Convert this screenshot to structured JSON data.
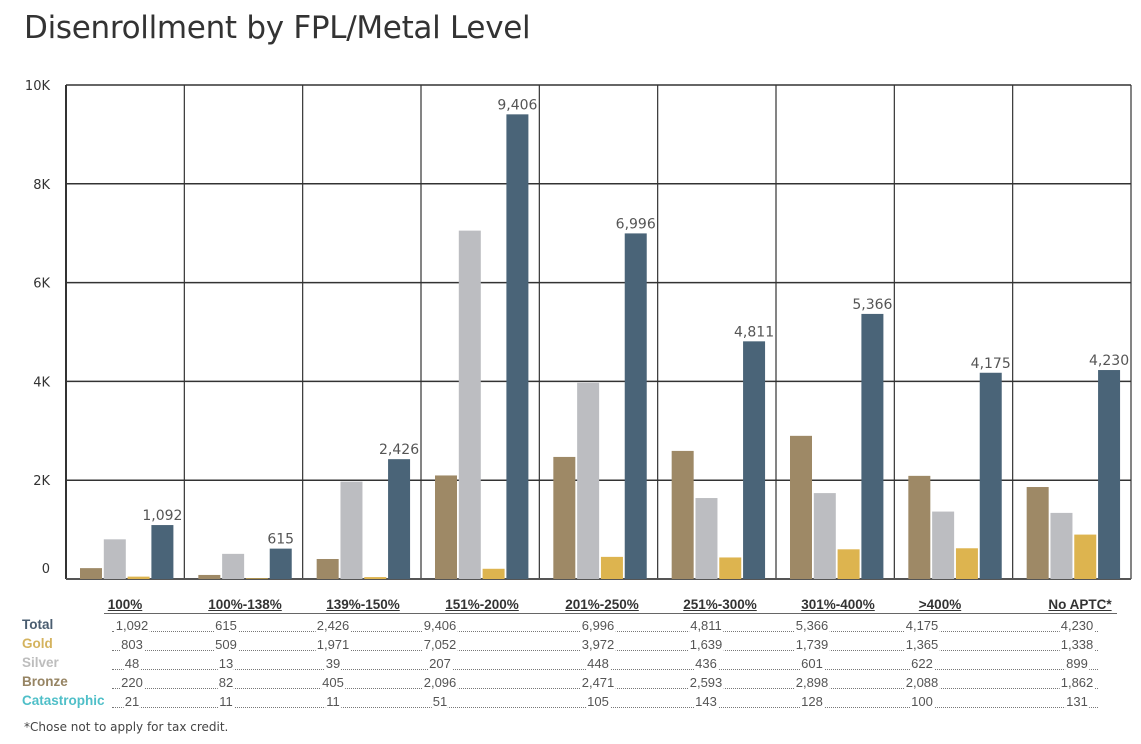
{
  "title": "Disenrollment by FPL/Metal Level",
  "chart_data": {
    "type": "bar",
    "title": "Disenrollment by FPL/Metal Level",
    "categories": [
      "100%",
      "100%-138%",
      "139%-150%",
      "151%-200%",
      "201%-250%",
      "251%-300%",
      "301%-400%",
      ">400%",
      "No APTC*"
    ],
    "ylim": [
      0,
      10000
    ],
    "yticks": [
      "0",
      "2K",
      "4K",
      "6K",
      "8K",
      "10K"
    ],
    "ytick_values": [
      0,
      2000,
      4000,
      6000,
      8000,
      10000
    ],
    "grid": true,
    "legend": "table below chart",
    "bars_drawn": [
      {
        "row": "Bronze",
        "color": "#9e8966"
      },
      {
        "row": "Gold",
        "color": "#bcbdc1"
      },
      {
        "row": "Silver",
        "color": "#ddb44f"
      },
      {
        "row": "Total",
        "color": "#4a6478",
        "data_labels": true
      }
    ],
    "series": [
      {
        "name": "Total",
        "color": "#4a5d70",
        "values": [
          1092,
          615,
          2426,
          9406,
          6996,
          4811,
          5366,
          4175,
          4230
        ]
      },
      {
        "name": "Gold",
        "color": "#d4b35e",
        "values": [
          803,
          509,
          1971,
          7052,
          3972,
          1639,
          1739,
          1365,
          1338
        ]
      },
      {
        "name": "Silver",
        "color": "#bdbdbd",
        "values": [
          48,
          13,
          39,
          207,
          448,
          436,
          601,
          622,
          899
        ]
      },
      {
        "name": "Bronze",
        "color": "#968463",
        "values": [
          220,
          82,
          405,
          2096,
          2471,
          2593,
          2898,
          2088,
          1862
        ]
      },
      {
        "name": "Catastrophic",
        "color": "#4fbfc8",
        "values": [
          21,
          11,
          11,
          51,
          105,
          143,
          128,
          100,
          131
        ]
      }
    ]
  },
  "table_values": {
    "Total": [
      "1,092",
      "615",
      "2,426",
      "9,406",
      "6,996",
      "4,811",
      "5,366",
      "4,175",
      "4,230"
    ],
    "Gold": [
      "803",
      "509",
      "1,971",
      "7,052",
      "3,972",
      "1,639",
      "1,739",
      "1,365",
      "1,338"
    ],
    "Silver": [
      "48",
      "13",
      "39",
      "207",
      "448",
      "436",
      "601",
      "622",
      "899"
    ],
    "Bronze": [
      "220",
      "82",
      "405",
      "2,096",
      "2,471",
      "2,593",
      "2,898",
      "2,088",
      "1,862"
    ],
    "Catastrophic": [
      "21",
      "11",
      "11",
      "51",
      "105",
      "143",
      "128",
      "100",
      "131"
    ]
  },
  "footnote": "*Chose not to apply for tax credit."
}
